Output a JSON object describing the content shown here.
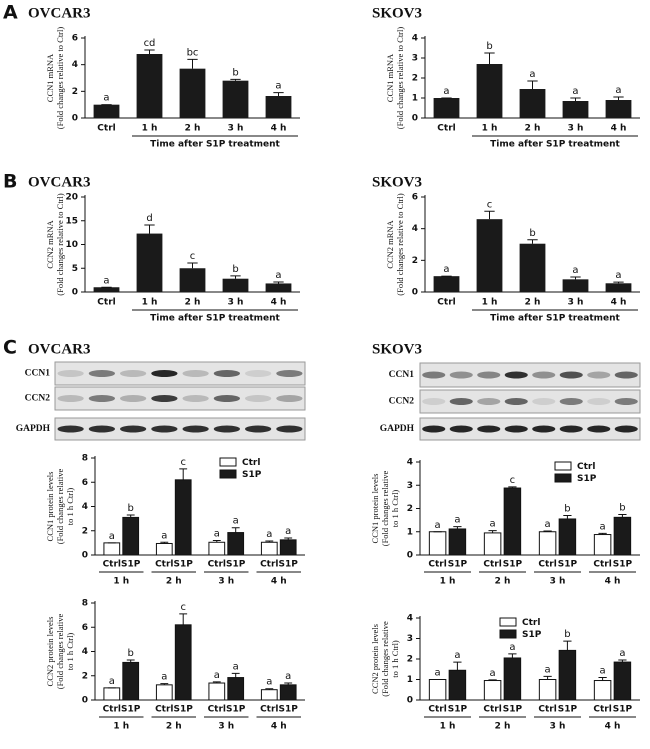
{
  "panel_labels": [
    "A",
    "B",
    "C"
  ],
  "blots": [
    {
      "title": "OVCAR3",
      "rows": [
        "CCN1",
        "CCN2",
        "GAPDH"
      ]
    },
    {
      "title": "SKOV3",
      "rows": [
        "CCN1",
        "CCN2",
        "GAPDH"
      ]
    }
  ],
  "chart_data": [
    {
      "type": "bar",
      "title": "OVCAR3",
      "ylabel": [
        "CCN1 mRNA",
        "(Fold changes relative to Ctrl)"
      ],
      "xlabel": "Time after S1P treatment",
      "categories": [
        "Ctrl",
        "1 h",
        "2 h",
        "3 h",
        "4 h"
      ],
      "values": [
        1,
        4.8,
        3.7,
        2.8,
        1.65
      ],
      "errors": [
        0,
        0.3,
        0.7,
        0.1,
        0.25
      ],
      "letters": [
        "a",
        "cd",
        "bc",
        "b",
        "a"
      ],
      "color": "#1a1a1a",
      "ylim": [
        0,
        6
      ],
      "yticks": [
        0,
        2,
        4,
        6
      ]
    },
    {
      "type": "bar",
      "title": "SKOV3",
      "ylabel": [
        "CCN1 mRNA",
        "(Fold changes relative to Ctrl)"
      ],
      "xlabel": "Time after S1P treatment",
      "categories": [
        "Ctrl",
        "1 h",
        "2 h",
        "3 h",
        "4 h"
      ],
      "values": [
        1,
        2.7,
        1.45,
        0.85,
        0.9
      ],
      "errors": [
        0,
        0.55,
        0.4,
        0.15,
        0.15
      ],
      "letters": [
        "a",
        "b",
        "a",
        "a",
        "a"
      ],
      "color": "#1a1a1a",
      "ylim": [
        0,
        4
      ],
      "yticks": [
        0,
        1,
        2,
        3,
        4
      ]
    },
    {
      "type": "bar",
      "title": "OVCAR3",
      "ylabel": [
        "CCN2 mRNA",
        "(Fold changes relative to Ctrl)"
      ],
      "xlabel": "Time after S1P treatment",
      "categories": [
        "Ctrl",
        "1 h",
        "2 h",
        "3 h",
        "4 h"
      ],
      "values": [
        1,
        12.3,
        5,
        2.8,
        1.8
      ],
      "errors": [
        0,
        1.8,
        1.1,
        0.6,
        0.3
      ],
      "letters": [
        "a",
        "d",
        "c",
        "b",
        "a"
      ],
      "color": "#1a1a1a",
      "ylim": [
        0,
        20
      ],
      "yticks": [
        0,
        5,
        10,
        15,
        20
      ]
    },
    {
      "type": "bar",
      "title": "SKOV3",
      "ylabel": [
        "CCN2 mRNA",
        "(Fold changes relative to Ctrl)"
      ],
      "xlabel": "Time after S1P treatment",
      "categories": [
        "Ctrl",
        "1 h",
        "2 h",
        "3 h",
        "4 h"
      ],
      "values": [
        1,
        4.6,
        3.05,
        0.8,
        0.55
      ],
      "errors": [
        0,
        0.5,
        0.25,
        0.15,
        0.07
      ],
      "letters": [
        "a",
        "c",
        "b",
        "a",
        "a"
      ],
      "color": "#1a1a1a",
      "ylim": [
        0,
        6
      ],
      "yticks": [
        0,
        2,
        4,
        6
      ]
    },
    {
      "type": "bar",
      "ylabel": [
        "CCN1 protein levels",
        "(Fold changes relative",
        "to 1 h Ctrl)"
      ],
      "categories": [
        "1 h",
        "2 h",
        "3 h",
        "4 h"
      ],
      "series": [
        {
          "name": "Ctrl",
          "color": "#ffffff",
          "values": [
            1,
            0.95,
            1.05,
            1.05
          ],
          "errors": [
            0,
            0.1,
            0.15,
            0.1
          ],
          "letters": [
            "a",
            "a",
            "a",
            "a"
          ]
        },
        {
          "name": "S1P",
          "color": "#1a1a1a",
          "values": [
            3.1,
            6.2,
            1.85,
            1.25
          ],
          "errors": [
            0.2,
            0.9,
            0.4,
            0.15
          ],
          "letters": [
            "b",
            "c",
            "a",
            "a"
          ]
        }
      ],
      "legend": "top-right",
      "ylim": [
        0,
        8
      ],
      "yticks": [
        0,
        2,
        4,
        6,
        8
      ]
    },
    {
      "type": "bar",
      "ylabel": [
        "CCN1 protein levels",
        "(Fold changes relative",
        "to 1 h Ctrl)"
      ],
      "categories": [
        "1 h",
        "2 h",
        "3 h",
        "4 h"
      ],
      "series": [
        {
          "name": "Ctrl",
          "color": "#ffffff",
          "values": [
            1,
            0.95,
            1,
            0.88
          ],
          "errors": [
            0,
            0.1,
            0.03,
            0.05
          ],
          "letters": [
            "a",
            "a",
            "a",
            "a"
          ]
        },
        {
          "name": "S1P",
          "color": "#1a1a1a",
          "values": [
            1.12,
            2.88,
            1.55,
            1.62
          ],
          "errors": [
            0.1,
            0.05,
            0.15,
            0.12
          ],
          "letters": [
            "a",
            "c",
            "b",
            "b"
          ]
        }
      ],
      "legend": "top-right",
      "ylim": [
        0,
        4
      ],
      "yticks": [
        0,
        1,
        2,
        3,
        4
      ]
    },
    {
      "type": "bar",
      "ylabel": [
        "CCN2 protein levels",
        "(Fold changes relative",
        "to 1 h Ctrl)"
      ],
      "categories": [
        "1 h",
        "2 h",
        "3 h",
        "4 h"
      ],
      "series": [
        {
          "name": "Ctrl",
          "color": "#ffffff",
          "values": [
            1,
            1.25,
            1.4,
            0.85
          ],
          "errors": [
            0,
            0.1,
            0.1,
            0.08
          ],
          "letters": [
            "a",
            "a",
            "a",
            "a"
          ]
        },
        {
          "name": "S1P",
          "color": "#1a1a1a",
          "values": [
            3.1,
            6.2,
            1.85,
            1.25
          ],
          "errors": [
            0.2,
            0.9,
            0.35,
            0.15
          ],
          "letters": [
            "b",
            "c",
            "a",
            "a"
          ]
        }
      ],
      "ylim": [
        0,
        8
      ],
      "yticks": [
        0,
        2,
        4,
        6,
        8
      ]
    },
    {
      "type": "bar",
      "ylabel": [
        "CCN2 protein levels",
        "(Fold changes relative",
        "to 1 h Ctrl)"
      ],
      "categories": [
        "1 h",
        "2 h",
        "3 h",
        "4 h"
      ],
      "series": [
        {
          "name": "Ctrl",
          "color": "#ffffff",
          "values": [
            1,
            0.95,
            1,
            0.95
          ],
          "errors": [
            0,
            0.03,
            0.15,
            0.15
          ],
          "letters": [
            "a",
            "a",
            "a",
            "a"
          ]
        },
        {
          "name": "S1P",
          "color": "#1a1a1a",
          "values": [
            1.45,
            2.05,
            2.42,
            1.85
          ],
          "errors": [
            0.4,
            0.2,
            0.45,
            0.1
          ],
          "letters": [
            "a",
            "a",
            "b",
            "a"
          ]
        }
      ],
      "legend": "top-center",
      "ylim": [
        0,
        4
      ],
      "yticks": [
        0,
        1,
        2,
        3,
        4
      ]
    }
  ]
}
